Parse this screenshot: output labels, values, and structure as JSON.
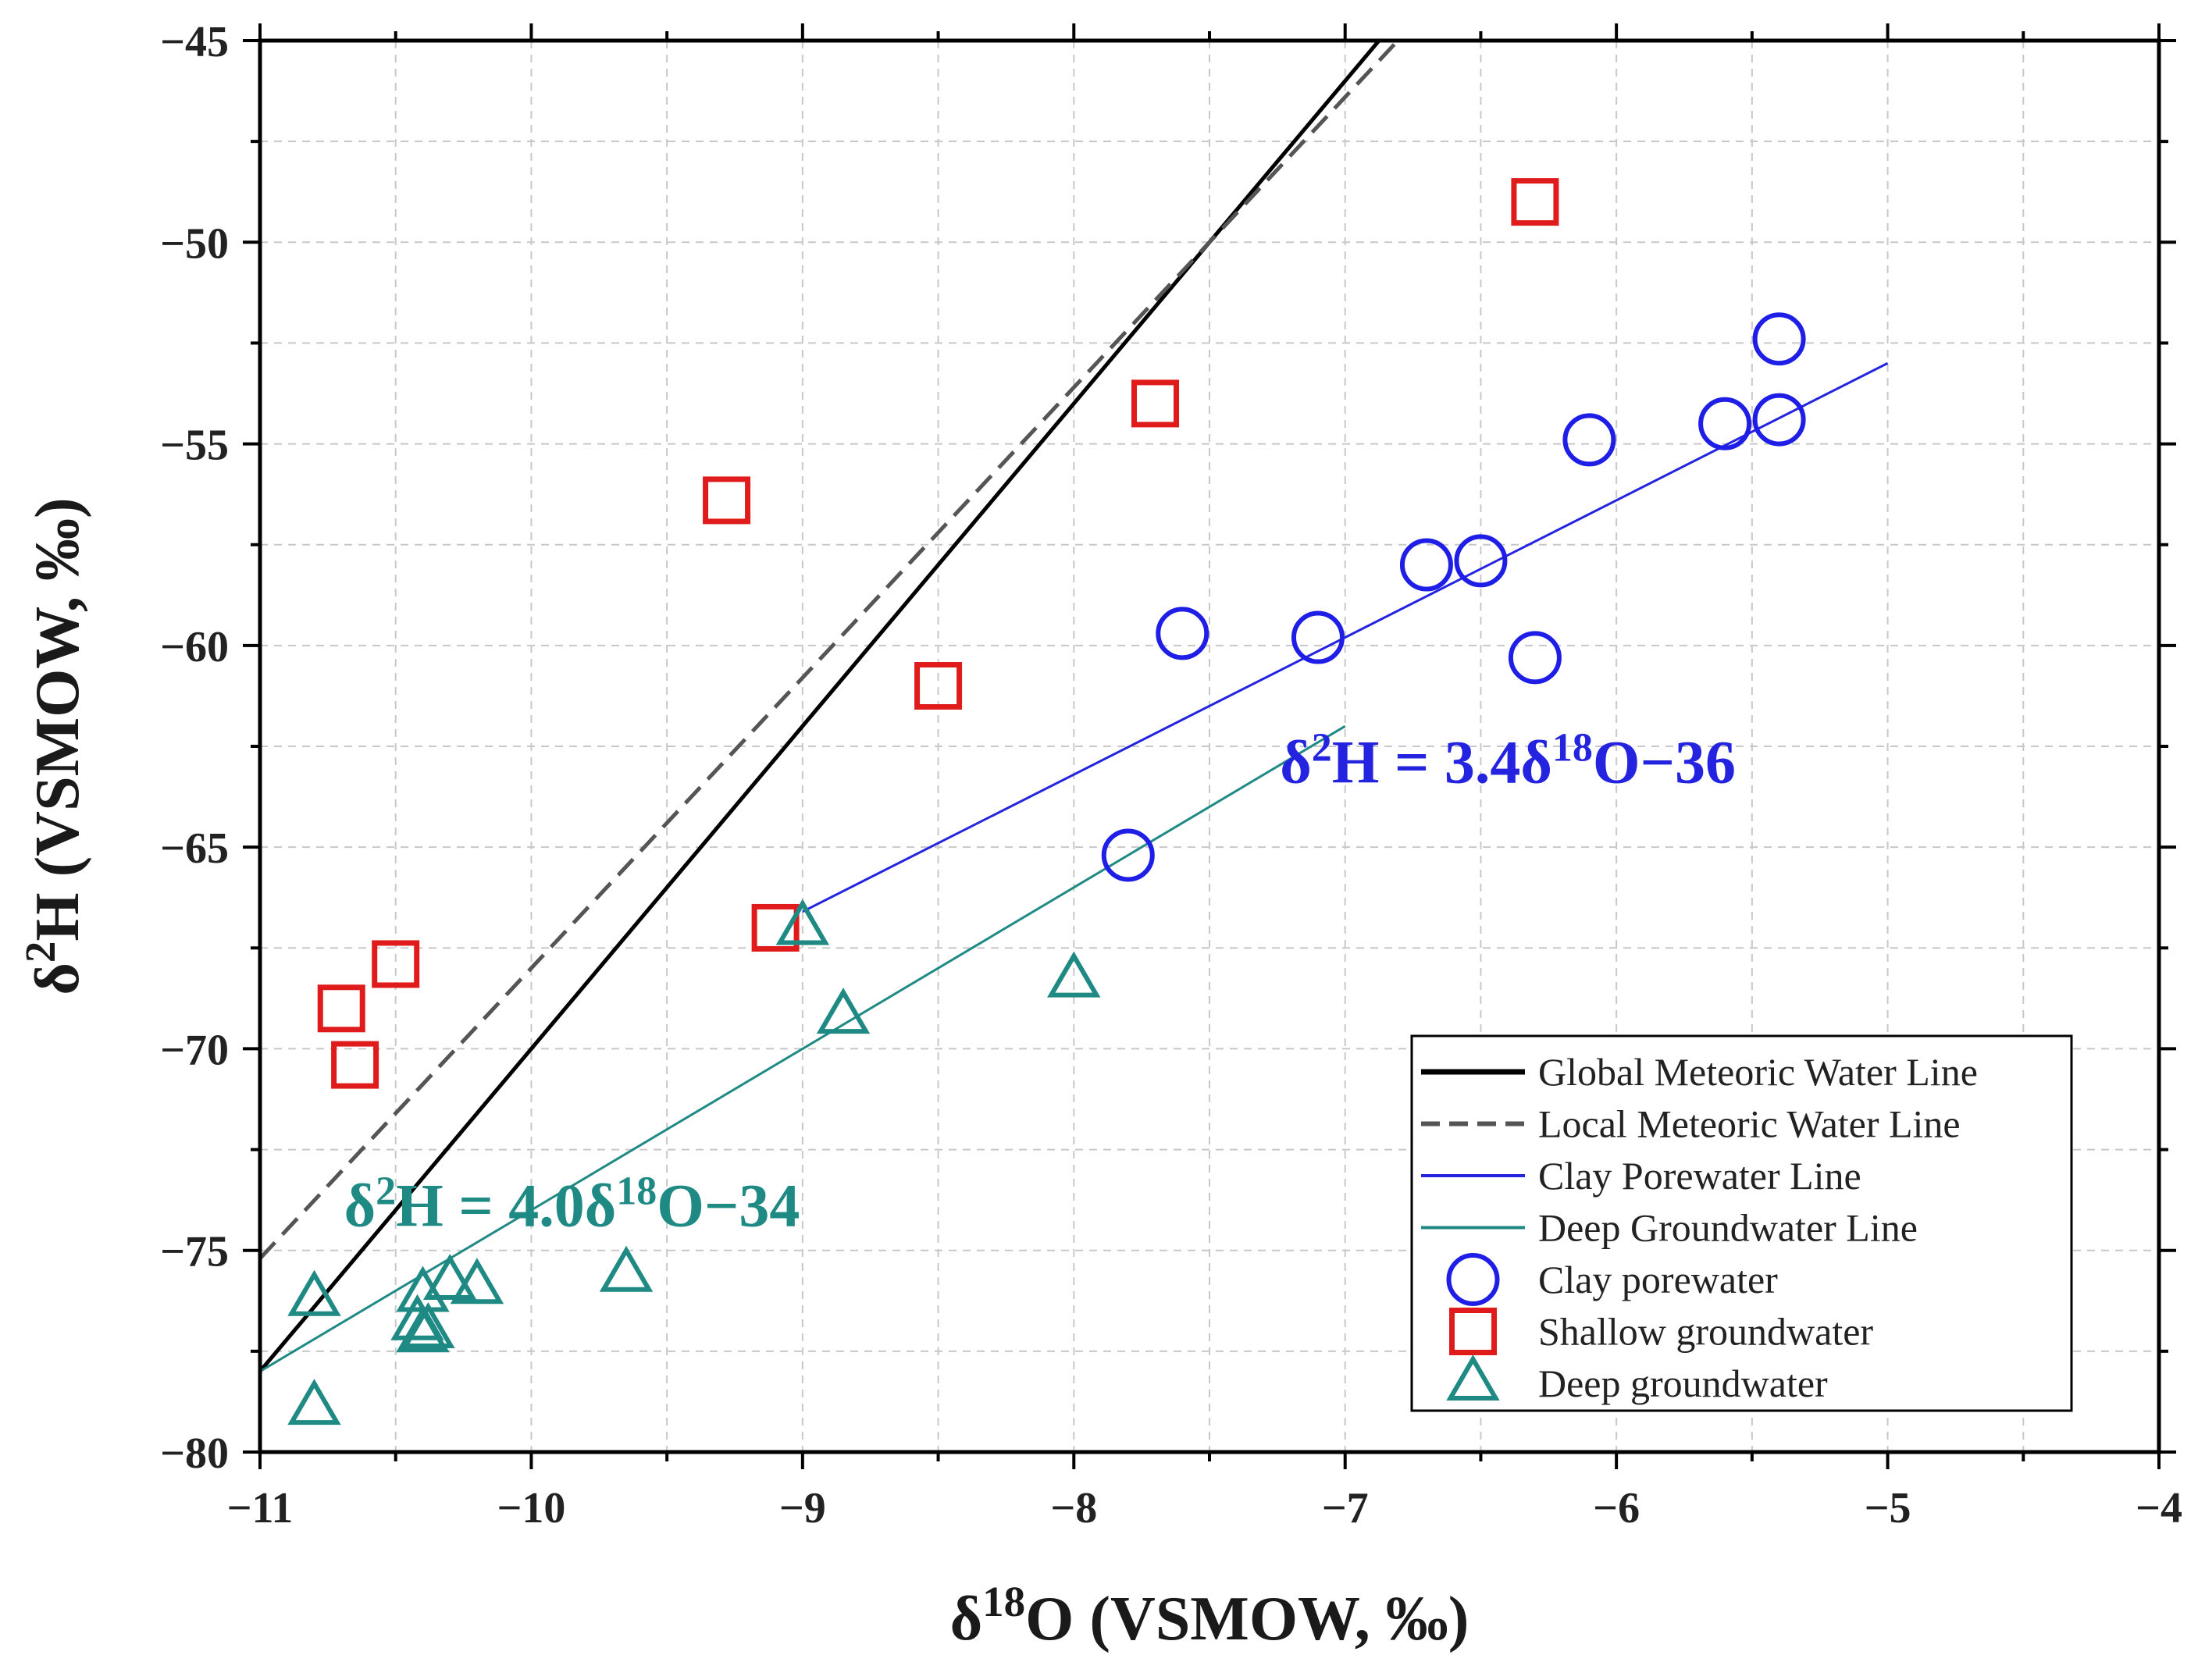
{
  "chart_data": {
    "type": "scatter",
    "title": "",
    "xlabel": {
      "main": "δ",
      "sup": "18",
      "rest": "O (VSMOW, ‰)"
    },
    "ylabel": {
      "main": "δ",
      "sup": "2",
      "rest": "H (VSMOW, ‰)"
    },
    "xlim": [
      -11,
      -4
    ],
    "ylim": [
      -80,
      -45
    ],
    "grid": true,
    "legend_position": "bottom-right",
    "x_ticks": [
      -11,
      -10,
      -9,
      -8,
      -7,
      -6,
      -5,
      -4
    ],
    "y_ticks": [
      -45,
      -50,
      -55,
      -60,
      -65,
      -70,
      -75,
      -80
    ],
    "x_tick_labels": [
      "−11",
      "−10",
      "−9",
      "−8",
      "−7",
      "−6",
      "−5",
      "−4"
    ],
    "y_tick_labels": [
      "−45",
      "−50",
      "−55",
      "−60",
      "−65",
      "−70",
      "−75",
      "−80"
    ],
    "lines": [
      {
        "name": "Global Meteoric Water Line",
        "slope": 8,
        "intercept": 10,
        "x_range": [
          -11,
          -6.75
        ],
        "color": "#000000",
        "style": "solid"
      },
      {
        "name": "Local Meteoric Water Line",
        "slope": 7.2,
        "intercept": 4,
        "x_range": [
          -11,
          -6.5
        ],
        "color": "#555555",
        "style": "dashed"
      },
      {
        "name": "Clay Porewater Line",
        "slope": 3.4,
        "intercept": -36,
        "x_range": [
          -9,
          -5
        ],
        "color": "#2323e0",
        "style": "solid"
      },
      {
        "name": "Deep Groundwater Line",
        "slope": 4.0,
        "intercept": -34,
        "x_range": [
          -11,
          -7
        ],
        "color": "#1f8a84",
        "style": "solid"
      }
    ],
    "series": [
      {
        "name": "Clay porewater",
        "marker": "circle",
        "color": "#1e1ee6",
        "points": [
          {
            "x": -7.8,
            "y": -65.2
          },
          {
            "x": -7.6,
            "y": -59.7
          },
          {
            "x": -7.1,
            "y": -59.8
          },
          {
            "x": -6.7,
            "y": -58.0
          },
          {
            "x": -6.5,
            "y": -57.9
          },
          {
            "x": -6.3,
            "y": -60.3
          },
          {
            "x": -6.1,
            "y": -54.9
          },
          {
            "x": -5.6,
            "y": -54.5
          },
          {
            "x": -5.4,
            "y": -54.4
          },
          {
            "x": -5.4,
            "y": -52.4
          }
        ]
      },
      {
        "name": "Shallow groundwater",
        "marker": "square",
        "color": "#e01b1b",
        "points": [
          {
            "x": -10.7,
            "y": -69.0
          },
          {
            "x": -10.65,
            "y": -70.4
          },
          {
            "x": -10.5,
            "y": -67.9
          },
          {
            "x": -9.28,
            "y": -56.4
          },
          {
            "x": -9.1,
            "y": -67.0
          },
          {
            "x": -8.5,
            "y": -61.0
          },
          {
            "x": -7.7,
            "y": -54.0
          },
          {
            "x": -6.3,
            "y": -49.0
          }
        ]
      },
      {
        "name": "Deep groundwater",
        "marker": "triangle",
        "color": "#1f8a84",
        "points": [
          {
            "x": -10.8,
            "y": -76.2
          },
          {
            "x": -10.8,
            "y": -78.9
          },
          {
            "x": -10.42,
            "y": -76.8
          },
          {
            "x": -10.4,
            "y": -76.1
          },
          {
            "x": -10.4,
            "y": -77.1
          },
          {
            "x": -10.38,
            "y": -77.0
          },
          {
            "x": -10.3,
            "y": -75.8
          },
          {
            "x": -10.2,
            "y": -75.9
          },
          {
            "x": -9.65,
            "y": -75.6
          },
          {
            "x": -9.0,
            "y": -67.0
          },
          {
            "x": -8.85,
            "y": -69.2
          },
          {
            "x": -8.0,
            "y": -68.3
          }
        ]
      }
    ],
    "annotations": [
      {
        "name": "clay-equation",
        "text_main": "δ",
        "sup1": "2",
        "text_mid": "H = 3.4δ",
        "sup2": "18",
        "text_end": "O−36",
        "color": "#2323e0",
        "x": -6.4,
        "y": -63.4
      },
      {
        "name": "deep-equation",
        "text_main": "δ",
        "sup1": "2",
        "text_mid": "H = 4.0δ",
        "sup2": "18",
        "text_end": "O−34",
        "color": "#1f8a84",
        "x": -9.85,
        "y": -74.4
      }
    ],
    "legend": [
      {
        "label": "Global Meteoric Water Line",
        "kind": "line",
        "color": "#000000",
        "style": "solid"
      },
      {
        "label": "Local Meteoric Water Line",
        "kind": "line",
        "color": "#555555",
        "style": "dashed"
      },
      {
        "label": "Clay Porewater Line",
        "kind": "line",
        "color": "#2323e0",
        "style": "thin"
      },
      {
        "label": "Deep Groundwater Line",
        "kind": "line",
        "color": "#1f8a84",
        "style": "thin"
      },
      {
        "label": "Clay porewater",
        "kind": "circle",
        "color": "#1e1ee6"
      },
      {
        "label": "Shallow groundwater",
        "kind": "square",
        "color": "#e01b1b"
      },
      {
        "label": "Deep groundwater",
        "kind": "triangle",
        "color": "#1f8a84"
      }
    ]
  }
}
